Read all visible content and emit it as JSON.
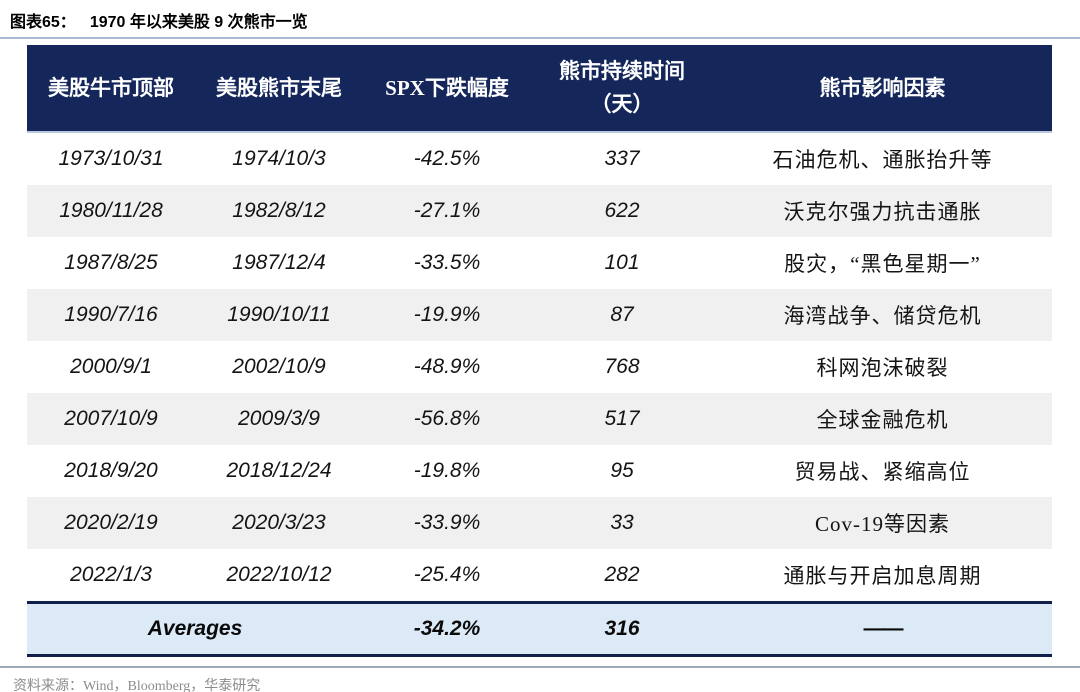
{
  "title": {
    "label": "图表65：",
    "text": "1970 年以来美股 9 次熊市一览"
  },
  "table": {
    "headers": [
      "美股牛市顶部",
      "美股熊市末尾",
      "SPX下跌幅度",
      "熊市持续时间（天）",
      "熊市影响因素"
    ],
    "rows": [
      {
        "top": "1973/10/31",
        "end": "1974/10/3",
        "drawdown": "-42.5%",
        "days": "337",
        "factor": "石油危机、通胀抬升等"
      },
      {
        "top": "1980/11/28",
        "end": "1982/8/12",
        "drawdown": "-27.1%",
        "days": "622",
        "factor": "沃克尔强力抗击通胀"
      },
      {
        "top": "1987/8/25",
        "end": "1987/12/4",
        "drawdown": "-33.5%",
        "days": "101",
        "factor": "股灾，“黑色星期一”"
      },
      {
        "top": "1990/7/16",
        "end": "1990/10/11",
        "drawdown": "-19.9%",
        "days": "87",
        "factor": "海湾战争、储贷危机"
      },
      {
        "top": "2000/9/1",
        "end": "2002/10/9",
        "drawdown": "-48.9%",
        "days": "768",
        "factor": "科网泡沫破裂"
      },
      {
        "top": "2007/10/9",
        "end": "2009/3/9",
        "drawdown": "-56.8%",
        "days": "517",
        "factor": "全球金融危机"
      },
      {
        "top": "2018/9/20",
        "end": "2018/12/24",
        "drawdown": "-19.8%",
        "days": "95",
        "factor": "贸易战、紧缩高位"
      },
      {
        "top": "2020/2/19",
        "end": "2020/3/23",
        "drawdown": "-33.9%",
        "days": "33",
        "factor": "Cov-19等因素"
      },
      {
        "top": "2022/1/3",
        "end": "2022/10/12",
        "drawdown": "-25.4%",
        "days": "282",
        "factor": "通胀与开启加息周期"
      }
    ],
    "summary": {
      "label": "Averages",
      "drawdown": "-34.2%",
      "days": "316",
      "factor": "——"
    }
  },
  "footer": {
    "source": "资料来源：Wind，Bloomberg，华泰研究"
  },
  "colors": {
    "header_bg": "#14265a",
    "header_text": "#ffffff",
    "row_stripe": "#f0f0f0",
    "summary_bg": "#dce9f6",
    "summary_border": "#10204a",
    "title_rule": "#a9bcd4",
    "footer_rule": "#9fa9b6",
    "source_text": "#8c8c8c"
  }
}
